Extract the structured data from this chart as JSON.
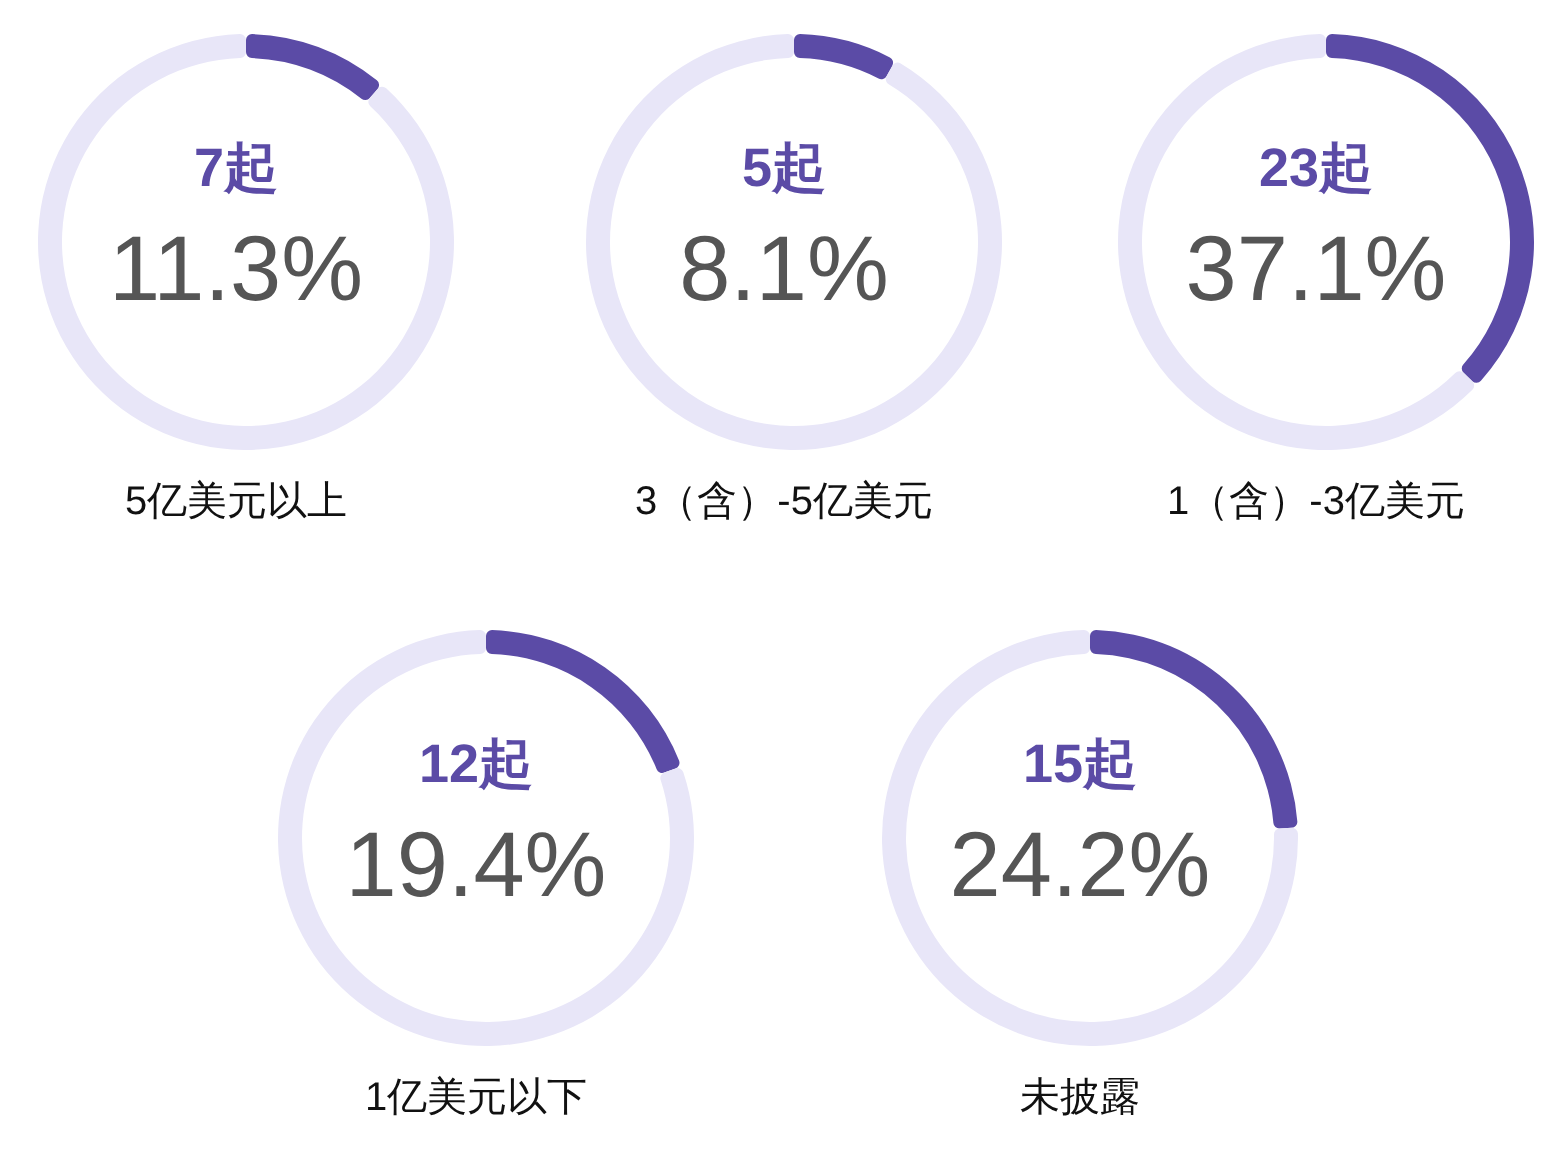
{
  "chart_data": [
    {
      "type": "donut",
      "title": "7起",
      "xlabel": "5亿美元以上",
      "categories": [
        null,
        null
      ],
      "values": [
        11.3,
        88.7
      ],
      "annotations": [
        "11.3%"
      ],
      "colors": [
        "#5b4ba6",
        "#e8e6f8"
      ]
    },
    {
      "type": "donut",
      "title": "5起",
      "xlabel": "3（含）-5亿美元",
      "categories": [
        null,
        null
      ],
      "values": [
        8.1,
        91.9
      ],
      "annotations": [
        "8.1%"
      ],
      "colors": [
        "#5b4ba6",
        "#e8e6f8"
      ]
    },
    {
      "type": "donut",
      "title": "23起",
      "xlabel": "1（含）-3亿美元",
      "categories": [
        null,
        null
      ],
      "values": [
        37.1,
        62.9
      ],
      "annotations": [
        "37.1%"
      ],
      "colors": [
        "#5b4ba6",
        "#e8e6f8"
      ]
    },
    {
      "type": "donut",
      "title": "12起",
      "xlabel": "1亿美元以下",
      "categories": [
        null,
        null
      ],
      "values": [
        19.4,
        80.6
      ],
      "annotations": [
        "19.4%"
      ],
      "colors": [
        "#5b4ba6",
        "#e8e6f8"
      ]
    },
    {
      "type": "donut",
      "title": "15起",
      "xlabel": "未披露",
      "categories": [
        null,
        null
      ],
      "values": [
        24.2,
        75.8
      ],
      "annotations": [
        "24.2%"
      ],
      "colors": [
        "#5b4ba6",
        "#e8e6f8"
      ]
    }
  ]
}
